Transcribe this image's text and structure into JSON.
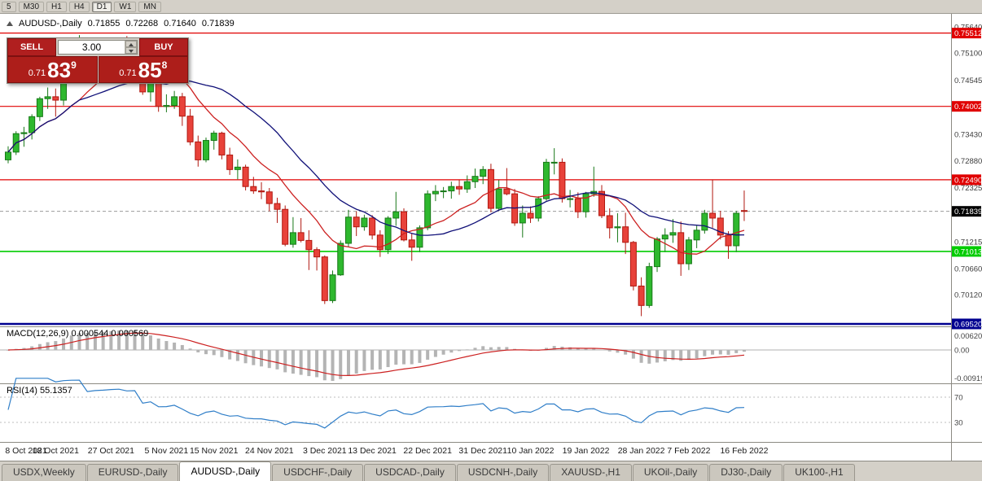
{
  "toolbar": {
    "timeframes": [
      "5",
      "M30",
      "H1",
      "H4",
      "D1",
      "W1",
      "MN"
    ],
    "active": "D1"
  },
  "chart_header": {
    "title": "AUDUSD-,Daily",
    "open": "0.71855",
    "high": "0.72268",
    "low": "0.71640",
    "close": "0.71839"
  },
  "trade_panel": {
    "sell_label": "SELL",
    "buy_label": "BUY",
    "volume": "3.00",
    "sell_price_small": "0.71",
    "sell_price_big": "83",
    "sell_price_sup": "9",
    "buy_price_small": "0.71",
    "buy_price_big": "85",
    "buy_price_sup": "8",
    "button_color": "#b01f1f"
  },
  "price_axis": {
    "labels": [
      {
        "text": "0.75640",
        "price": 0.7564
      },
      {
        "text": "0.75100",
        "price": 0.751
      },
      {
        "text": "0.74545",
        "price": 0.74545
      },
      {
        "text": "0.73430",
        "price": 0.7343
      },
      {
        "text": "0.72880",
        "price": 0.7288
      },
      {
        "text": "0.72325",
        "price": 0.72325
      },
      {
        "text": "0.71215",
        "price": 0.71215
      },
      {
        "text": "0.70660",
        "price": 0.7066
      },
      {
        "text": "0.70120",
        "price": 0.7012
      }
    ]
  },
  "hlines": [
    {
      "price": 0.75512,
      "text": "0.75512",
      "color": "#e00000",
      "width": 1.2
    },
    {
      "price": 0.74002,
      "text": "0.74002",
      "color": "#e00000",
      "width": 1.2
    },
    {
      "price": 0.7249,
      "text": "0.72490",
      "color": "#e00000",
      "width": 1.2
    },
    {
      "price": 0.71013,
      "text": "0.71013",
      "color": "#00cc00",
      "width": 1.6
    },
    {
      "price": 0.6952,
      "text": "0.69520",
      "color": "#000090",
      "width": 2.5
    }
  ],
  "current_price": {
    "price": 0.71839,
    "text": "0.71839",
    "box_color": "#000000"
  },
  "macd_panel": {
    "label": "MACD(12,26,9) 0.000544 0.000569",
    "axis_labels": [
      {
        "text": "0.00620",
        "value": 0.0062
      },
      {
        "text": "0.00",
        "value": 0
      },
      {
        "text": "-0.00919",
        "value": -0.00919
      }
    ]
  },
  "rsi_panel": {
    "label": "RSI(14) 55.1357",
    "value": 55.1357,
    "levels": [
      {
        "text": "70",
        "value": 70
      },
      {
        "text": "30",
        "value": 30
      }
    ]
  },
  "date_axis": [
    {
      "text": "8 Oct 2021",
      "index": 0
    },
    {
      "text": "18 Oct 2021",
      "index": 6
    },
    {
      "text": "27 Oct 2021",
      "index": 13
    },
    {
      "text": "5 Nov 2021",
      "index": 20
    },
    {
      "text": "15 Nov 2021",
      "index": 26
    },
    {
      "text": "24 Nov 2021",
      "index": 33
    },
    {
      "text": "3 Dec 2021",
      "index": 40
    },
    {
      "text": "13 Dec 2021",
      "index": 46
    },
    {
      "text": "22 Dec 2021",
      "index": 53
    },
    {
      "text": "31 Dec 2021",
      "index": 60
    },
    {
      "text": "10 Jan 2022",
      "index": 66
    },
    {
      "text": "19 Jan 2022",
      "index": 73
    },
    {
      "text": "28 Jan 2022",
      "index": 80
    },
    {
      "text": "7 Feb 2022",
      "index": 86
    },
    {
      "text": "16 Feb 2022",
      "index": 93
    }
  ],
  "tabs": [
    {
      "label": "USDX,Weekly",
      "active": false
    },
    {
      "label": "EURUSD-,Daily",
      "active": false
    },
    {
      "label": "AUDUSD-,Daily",
      "active": true
    },
    {
      "label": "USDCHF-,Daily",
      "active": false
    },
    {
      "label": "USDCAD-,Daily",
      "active": false
    },
    {
      "label": "USDCNH-,Daily",
      "active": false
    },
    {
      "label": "XAUUSD-,H1",
      "active": false
    },
    {
      "label": "UKOil-,Daily",
      "active": false
    },
    {
      "label": "DJ30-,Daily",
      "active": false
    },
    {
      "label": "UK100-,H1",
      "active": false
    }
  ],
  "chart_data": {
    "type": "candlestick",
    "symbol": "AUDUSD-,Daily",
    "price_range": [
      0.69486,
      0.757238
    ],
    "up_color": "#2eb82e",
    "up_border": "#187818",
    "down_color": "#e8423a",
    "down_border": "#b01810",
    "ma_fast": {
      "period": 10,
      "color": "#cc2020"
    },
    "ma_slow": {
      "period": 21,
      "color": "#101078"
    },
    "macd": {
      "fast": 12,
      "slow": 26,
      "signal": 9,
      "hist_color": "#b4b4b4",
      "signal_color": "#cc2020",
      "range": [
        -0.00919,
        0.0062
      ]
    },
    "rsi": {
      "period": 14,
      "color": "#2f7ec8",
      "last": 55.1357
    },
    "candles": [
      [
        0.729,
        0.7318,
        0.7283,
        0.7306
      ],
      [
        0.7306,
        0.7349,
        0.73,
        0.7344
      ],
      [
        0.7344,
        0.7358,
        0.7317,
        0.7346
      ],
      [
        0.7346,
        0.7384,
        0.7332,
        0.7379
      ],
      [
        0.7379,
        0.742,
        0.737,
        0.7416
      ],
      [
        0.7416,
        0.7439,
        0.7395,
        0.742
      ],
      [
        0.742,
        0.7437,
        0.7379,
        0.7413
      ],
      [
        0.7413,
        0.7477,
        0.7402,
        0.7474
      ],
      [
        0.7474,
        0.7519,
        0.7458,
        0.7515
      ],
      [
        0.7515,
        0.7547,
        0.7495,
        0.752
      ],
      [
        0.752,
        0.7525,
        0.7459,
        0.7468
      ],
      [
        0.7468,
        0.75,
        0.745,
        0.749
      ],
      [
        0.749,
        0.7511,
        0.7478,
        0.75
      ],
      [
        0.75,
        0.7522,
        0.7482,
        0.7518
      ],
      [
        0.7518,
        0.7536,
        0.75,
        0.7529
      ],
      [
        0.7529,
        0.7545,
        0.751,
        0.7518
      ],
      [
        0.7518,
        0.7535,
        0.7493,
        0.7525
      ],
      [
        0.7525,
        0.7536,
        0.7424,
        0.743
      ],
      [
        0.743,
        0.7456,
        0.741,
        0.745
      ],
      [
        0.745,
        0.7455,
        0.7389,
        0.74
      ],
      [
        0.74,
        0.7425,
        0.7388,
        0.7402
      ],
      [
        0.7402,
        0.7432,
        0.7395,
        0.742
      ],
      [
        0.742,
        0.7428,
        0.736,
        0.738
      ],
      [
        0.738,
        0.7395,
        0.732,
        0.7327
      ],
      [
        0.7327,
        0.734,
        0.7276,
        0.729
      ],
      [
        0.729,
        0.7336,
        0.7285,
        0.733
      ],
      [
        0.733,
        0.735,
        0.7311,
        0.7345
      ],
      [
        0.7345,
        0.7348,
        0.7291,
        0.73
      ],
      [
        0.73,
        0.7315,
        0.7259,
        0.727
      ],
      [
        0.727,
        0.7291,
        0.725,
        0.7275
      ],
      [
        0.7275,
        0.728,
        0.7227,
        0.7235
      ],
      [
        0.7235,
        0.7255,
        0.722,
        0.7226
      ],
      [
        0.7226,
        0.7244,
        0.7209,
        0.7224
      ],
      [
        0.7224,
        0.7232,
        0.7184,
        0.72
      ],
      [
        0.72,
        0.7212,
        0.716,
        0.7188
      ],
      [
        0.7188,
        0.7196,
        0.7112,
        0.7116
      ],
      [
        0.7116,
        0.7172,
        0.7109,
        0.714
      ],
      [
        0.714,
        0.717,
        0.712,
        0.7124
      ],
      [
        0.7124,
        0.7145,
        0.7063,
        0.7105
      ],
      [
        0.7105,
        0.711,
        0.7062,
        0.709
      ],
      [
        0.709,
        0.7093,
        0.6993,
        0.7
      ],
      [
        0.7,
        0.7062,
        0.6995,
        0.7053
      ],
      [
        0.7053,
        0.7124,
        0.7051,
        0.7118
      ],
      [
        0.7118,
        0.7187,
        0.7111,
        0.7172
      ],
      [
        0.7172,
        0.7184,
        0.7133,
        0.7152
      ],
      [
        0.7152,
        0.7177,
        0.7144,
        0.717
      ],
      [
        0.717,
        0.7176,
        0.7126,
        0.7135
      ],
      [
        0.7135,
        0.7145,
        0.709,
        0.7105
      ],
      [
        0.7105,
        0.7174,
        0.7096,
        0.717
      ],
      [
        0.717,
        0.7224,
        0.7154,
        0.7183
      ],
      [
        0.7183,
        0.719,
        0.7122,
        0.7125
      ],
      [
        0.7125,
        0.7139,
        0.7082,
        0.711
      ],
      [
        0.711,
        0.7155,
        0.71,
        0.715
      ],
      [
        0.715,
        0.7227,
        0.7145,
        0.722
      ],
      [
        0.722,
        0.7238,
        0.7205,
        0.7225
      ],
      [
        0.7225,
        0.7234,
        0.7211,
        0.7226
      ],
      [
        0.7226,
        0.7245,
        0.721,
        0.7235
      ],
      [
        0.7235,
        0.7248,
        0.7218,
        0.723
      ],
      [
        0.723,
        0.7258,
        0.7222,
        0.7245
      ],
      [
        0.7245,
        0.7272,
        0.7232,
        0.7256
      ],
      [
        0.7256,
        0.7277,
        0.724,
        0.727
      ],
      [
        0.727,
        0.7282,
        0.7182,
        0.719
      ],
      [
        0.719,
        0.7248,
        0.7185,
        0.723
      ],
      [
        0.723,
        0.7273,
        0.7217,
        0.722
      ],
      [
        0.722,
        0.723,
        0.7154,
        0.716
      ],
      [
        0.716,
        0.7196,
        0.713,
        0.718
      ],
      [
        0.718,
        0.7194,
        0.716,
        0.717
      ],
      [
        0.717,
        0.7215,
        0.7163,
        0.721
      ],
      [
        0.721,
        0.7292,
        0.7206,
        0.7285
      ],
      [
        0.7285,
        0.7314,
        0.726,
        0.7285
      ],
      [
        0.7285,
        0.7293,
        0.7202,
        0.721
      ],
      [
        0.721,
        0.7228,
        0.7192,
        0.721
      ],
      [
        0.721,
        0.7223,
        0.717,
        0.7183
      ],
      [
        0.7183,
        0.7224,
        0.7171,
        0.722
      ],
      [
        0.722,
        0.7276,
        0.7214,
        0.7225
      ],
      [
        0.7225,
        0.7238,
        0.717,
        0.7175
      ],
      [
        0.7175,
        0.719,
        0.7128,
        0.715
      ],
      [
        0.715,
        0.718,
        0.712,
        0.7152
      ],
      [
        0.7152,
        0.7181,
        0.7096,
        0.712
      ],
      [
        0.712,
        0.7123,
        0.7021,
        0.703
      ],
      [
        0.703,
        0.7048,
        0.6968,
        0.699
      ],
      [
        0.699,
        0.7078,
        0.6985,
        0.707
      ],
      [
        0.707,
        0.7131,
        0.7059,
        0.7127
      ],
      [
        0.7127,
        0.7149,
        0.71,
        0.7135
      ],
      [
        0.7135,
        0.7168,
        0.7119,
        0.714
      ],
      [
        0.714,
        0.7163,
        0.7051,
        0.7076
      ],
      [
        0.7076,
        0.7131,
        0.7063,
        0.7125
      ],
      [
        0.7125,
        0.7154,
        0.7108,
        0.7145
      ],
      [
        0.7145,
        0.7187,
        0.7138,
        0.718
      ],
      [
        0.718,
        0.7249,
        0.715,
        0.717
      ],
      [
        0.717,
        0.7185,
        0.7126,
        0.7135
      ],
      [
        0.7135,
        0.7143,
        0.7086,
        0.7113
      ],
      [
        0.7113,
        0.7185,
        0.71,
        0.718
      ],
      [
        0.71855,
        0.72268,
        0.7164,
        0.71839
      ]
    ]
  }
}
